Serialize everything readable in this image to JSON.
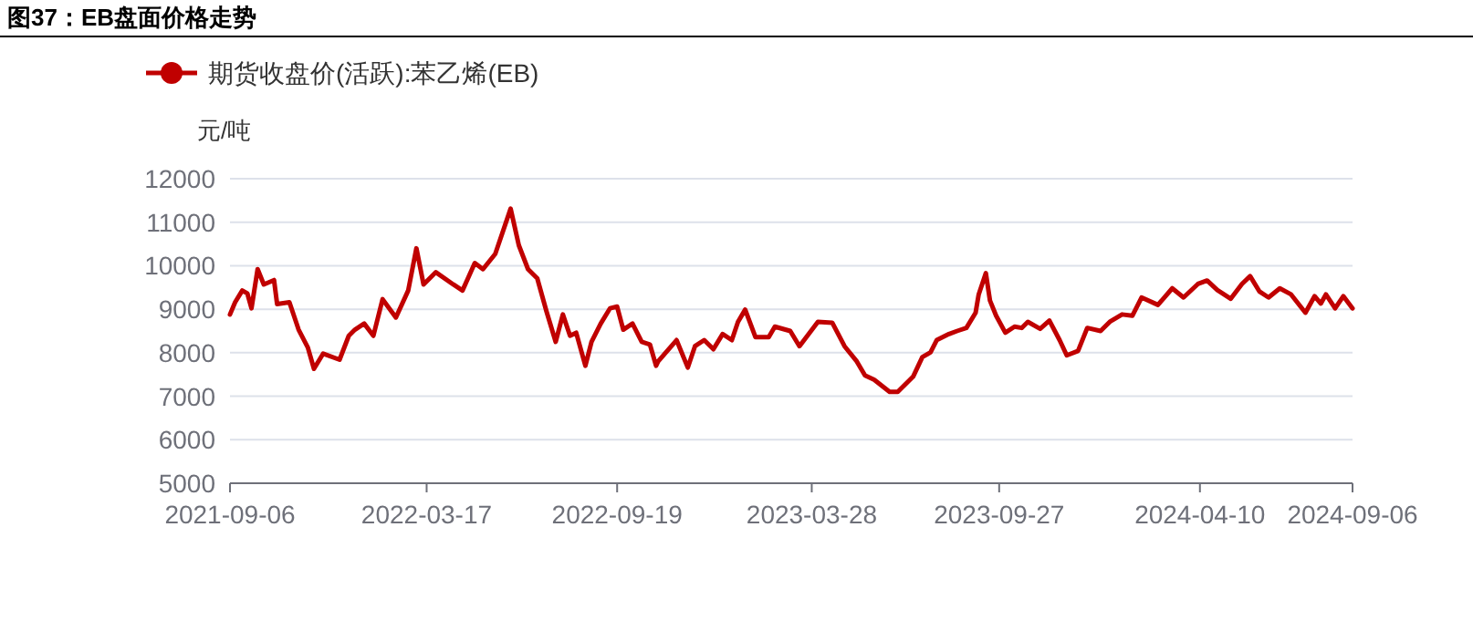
{
  "chart_data": {
    "type": "line",
    "title": "图37：EB盘面价格走势",
    "ylabel": "元/吨",
    "x": [
      "2021-09-06",
      "2021-09-11",
      "2021-09-18",
      "2021-09-23",
      "2021-09-27",
      "2021-10-03",
      "2021-10-09",
      "2021-10-19",
      "2021-10-22",
      "2021-11-03",
      "2021-11-12",
      "2021-11-21",
      "2021-11-27",
      "2021-12-06",
      "2021-12-22",
      "2021-12-31",
      "2022-01-06",
      "2022-01-15",
      "2022-01-24",
      "2022-02-02",
      "2022-02-15",
      "2022-02-27",
      "2022-03-07",
      "2022-03-14",
      "2022-03-26",
      "2022-04-12",
      "2022-04-21",
      "2022-05-03",
      "2022-05-11",
      "2022-05-23",
      "2022-06-07",
      "2022-06-15",
      "2022-06-24",
      "2022-07-03",
      "2022-07-12",
      "2022-07-21",
      "2022-07-28",
      "2022-08-04",
      "2022-08-10",
      "2022-08-19",
      "2022-08-25",
      "2022-09-03",
      "2022-09-12",
      "2022-09-19",
      "2022-09-25",
      "2022-10-04",
      "2022-10-13",
      "2022-10-21",
      "2022-10-27",
      "2022-10-29",
      "2022-11-16",
      "2022-11-27",
      "2022-12-04",
      "2022-12-13",
      "2022-12-22",
      "2022-12-31",
      "2023-01-09",
      "2023-01-15",
      "2023-01-22",
      "2023-02-01",
      "2023-02-14",
      "2023-02-20",
      "2023-03-07",
      "2023-03-16",
      "2023-04-03",
      "2023-04-17",
      "2023-04-29",
      "2023-05-11",
      "2023-05-19",
      "2023-05-28",
      "2023-06-12",
      "2023-06-20",
      "2023-07-05",
      "2023-07-14",
      "2023-07-22",
      "2023-07-28",
      "2023-08-09",
      "2023-08-17",
      "2023-08-26",
      "2023-09-04",
      "2023-09-07",
      "2023-09-14",
      "2023-09-18",
      "2023-09-24",
      "2023-10-03",
      "2023-10-12",
      "2023-10-19",
      "2023-10-25",
      "2023-11-06",
      "2023-11-15",
      "2023-11-25",
      "2023-12-02",
      "2023-12-13",
      "2023-12-22",
      "2024-01-04",
      "2024-01-13",
      "2024-01-25",
      "2024-02-04",
      "2024-02-13",
      "2024-02-29",
      "2024-03-14",
      "2024-03-25",
      "2024-04-08",
      "2024-04-17",
      "2024-04-27",
      "2024-05-10",
      "2024-05-21",
      "2024-05-29",
      "2024-06-07",
      "2024-06-16",
      "2024-06-27",
      "2024-07-08",
      "2024-07-22",
      "2024-07-31",
      "2024-08-06",
      "2024-08-11",
      "2024-08-20",
      "2024-08-28",
      "2024-09-06"
    ],
    "series": [
      {
        "name": "期货收盘价(活跃):苯乙烯(EB)",
        "color": "#c00000",
        "values": [
          8880,
          9160,
          9430,
          9360,
          9020,
          9920,
          9570,
          9670,
          9120,
          9160,
          8530,
          8120,
          7630,
          7980,
          7840,
          8390,
          8530,
          8670,
          8390,
          9230,
          8810,
          9430,
          10400,
          9570,
          9850,
          9570,
          9430,
          10060,
          9920,
          10270,
          11310,
          10470,
          9920,
          9710,
          8950,
          8250,
          8880,
          8390,
          8460,
          7700,
          8250,
          8670,
          9020,
          9060,
          8530,
          8670,
          8250,
          8190,
          7700,
          7800,
          8290,
          7660,
          8150,
          8290,
          8080,
          8430,
          8290,
          8710,
          8990,
          8360,
          8360,
          8600,
          8500,
          8150,
          8710,
          8690,
          8150,
          7800,
          7480,
          7380,
          7100,
          7100,
          7450,
          7900,
          8010,
          8290,
          8430,
          8500,
          8570,
          8920,
          9340,
          9830,
          9200,
          8850,
          8460,
          8600,
          8570,
          8710,
          8550,
          8740,
          8290,
          7940,
          8040,
          8570,
          8500,
          8710,
          8880,
          8850,
          9270,
          9100,
          9480,
          9270,
          9580,
          9660,
          9440,
          9240,
          9580,
          9760,
          9410,
          9270,
          9480,
          9340,
          8920,
          9300,
          9130,
          9340,
          9020,
          9300,
          9020
        ]
      }
    ],
    "xlim": [
      "2021-09-06",
      "2024-09-06"
    ],
    "xticks": [
      "2021-09-06",
      "2022-03-17",
      "2022-09-19",
      "2023-03-28",
      "2023-09-27",
      "2024-04-10",
      "2024-09-06"
    ],
    "ylim": [
      5000,
      12000
    ],
    "yticks": [
      5000,
      6000,
      7000,
      8000,
      9000,
      10000,
      11000,
      12000
    ],
    "grid": "y",
    "legend": "top left"
  }
}
